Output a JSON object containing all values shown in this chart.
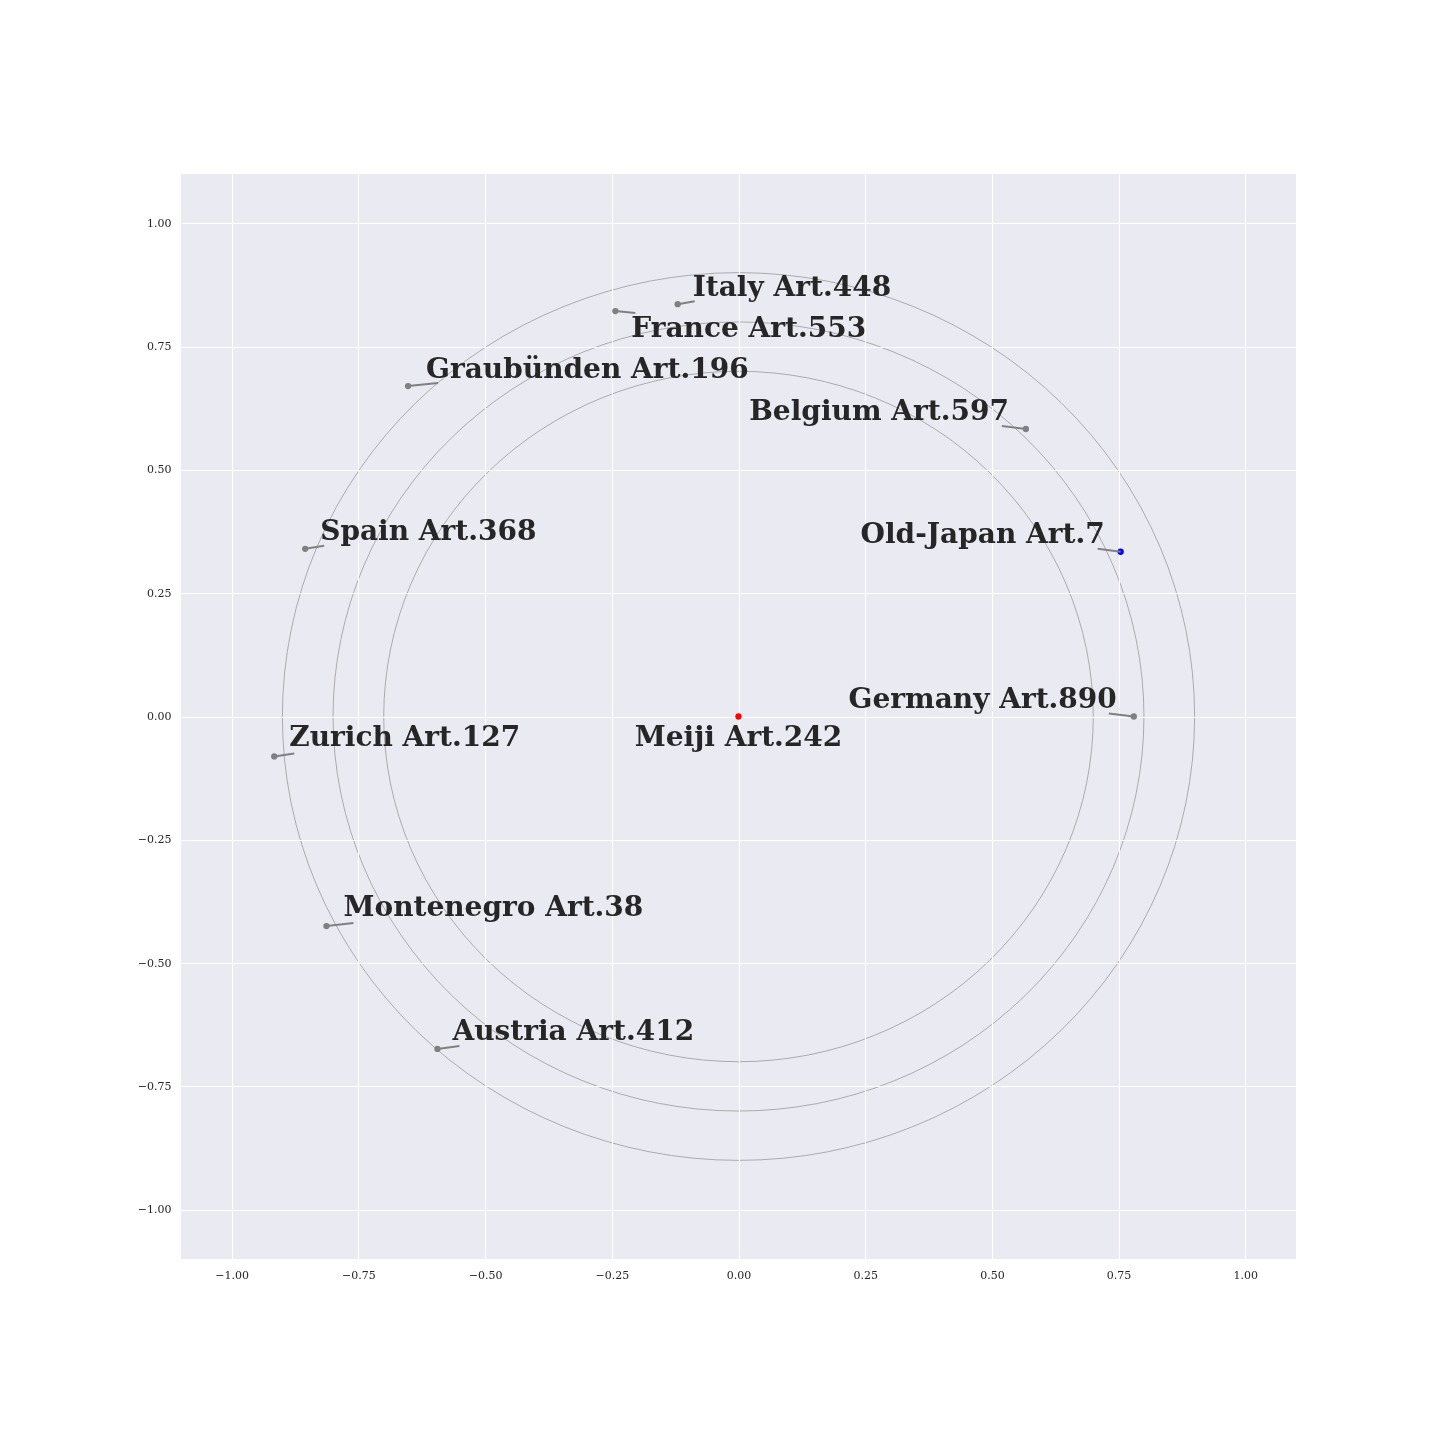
{
  "chart_data": {
    "type": "scatter",
    "xlim": [
      -1.1,
      1.1
    ],
    "ylim": [
      -1.1,
      1.1
    ],
    "xticks": [
      {
        "value": -1,
        "label": "−1.00"
      },
      {
        "value": -0.75,
        "label": "−0.75"
      },
      {
        "value": -0.5,
        "label": "−0.50"
      },
      {
        "value": -0.25,
        "label": "−0.25"
      },
      {
        "value": 0,
        "label": "0.00"
      },
      {
        "value": 0.25,
        "label": "0.25"
      },
      {
        "value": 0.5,
        "label": "0.50"
      },
      {
        "value": 0.75,
        "label": "0.75"
      },
      {
        "value": 1,
        "label": "1.00"
      }
    ],
    "yticks": [
      {
        "value": -1,
        "label": "−1.00"
      },
      {
        "value": -0.75,
        "label": "−0.75"
      },
      {
        "value": -0.5,
        "label": "−0.50"
      },
      {
        "value": -0.25,
        "label": "−0.25"
      },
      {
        "value": 0,
        "label": "0.00"
      },
      {
        "value": 0.25,
        "label": "0.25"
      },
      {
        "value": 0.5,
        "label": "0.50"
      },
      {
        "value": 0.75,
        "label": "0.75"
      },
      {
        "value": 1,
        "label": "1.00"
      }
    ],
    "grid": true,
    "marker": "circle",
    "series": [
      {
        "x": [
          -0.12,
          -0.243,
          -0.652,
          0.567,
          -0.855,
          0.754,
          0.78,
          0,
          -0.916,
          -0.813,
          -0.594
        ],
        "values": [
          0.836,
          0.822,
          0.67,
          0.583,
          0.34,
          0.334,
          0,
          0,
          -0.081,
          -0.425,
          -0.674
        ],
        "colors": [
          "#808080",
          "#808080",
          "#808080",
          "#808080",
          "#808080",
          "#0000ff",
          "#808080",
          "#ff0000",
          "#808080",
          "#808080",
          "#808080"
        ]
      }
    ],
    "annotations": [
      {
        "text": "Italy Art.448",
        "x": -0.12,
        "y": 0.836
      },
      {
        "text": "France Art.553",
        "x": -0.243,
        "y": 0.822
      },
      {
        "text": "Graubünden Art.196",
        "x": -0.652,
        "y": 0.67
      },
      {
        "text": "Belgium Art.597",
        "x": 0.567,
        "y": 0.583
      },
      {
        "text": "Spain Art.368",
        "x": -0.855,
        "y": 0.34
      },
      {
        "text": "Old-Japan Art.7",
        "x": 0.754,
        "y": 0.334
      },
      {
        "text": "Germany Art.890",
        "x": 0.78,
        "y": 0
      },
      {
        "text": "Meiji Art.242",
        "x": 0,
        "y": 0
      },
      {
        "text": "Zurich Art.127",
        "x": -0.916,
        "y": -0.081
      },
      {
        "text": "Montenegro Art.38",
        "x": -0.813,
        "y": -0.425
      },
      {
        "text": "Austria Art.412",
        "x": -0.594,
        "y": -0.674
      }
    ]
  }
}
